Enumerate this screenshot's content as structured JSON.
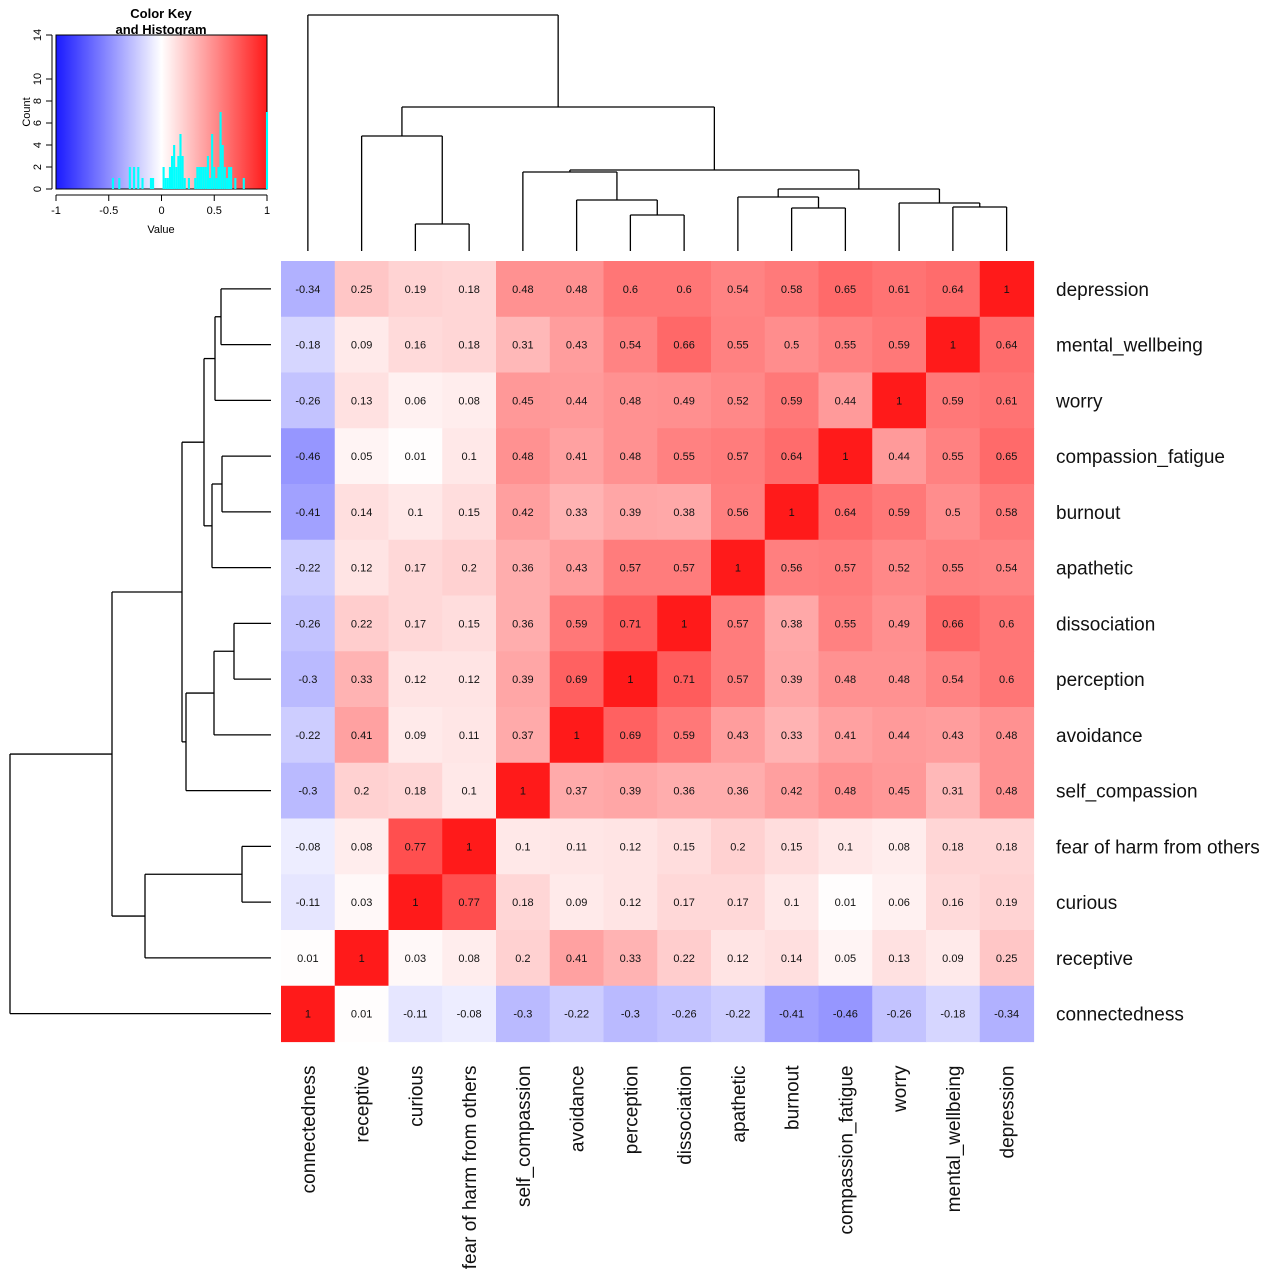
{
  "chart_data": {
    "type": "heatmap",
    "color_key": {
      "title_line1": "Color Key",
      "title_line2": "and Histogram",
      "xlabel": "Value",
      "ylabel": "Count",
      "x_ticks": [
        "-1",
        "-0.5",
        "0",
        "0.5",
        "1"
      ],
      "y_ticks": [
        "0",
        "2",
        "4",
        "6",
        "8",
        "10",
        "14"
      ],
      "xlim": [
        -1,
        1
      ],
      "ylim": [
        0,
        14
      ],
      "low_color": "#1a1aff",
      "mid_color": "#ffffff",
      "high_color": "#ff1a1a",
      "histogram_color": "#00ffff"
    },
    "columns": [
      "connectedness",
      "receptive",
      "curious",
      "fear of harm from others",
      "self_compassion",
      "avoidance",
      "perception",
      "dissociation",
      "apathetic",
      "burnout",
      "compassion_fatigue",
      "worry",
      "mental_wellbeing",
      "depression"
    ],
    "rows": [
      "depression",
      "mental_wellbeing",
      "worry",
      "compassion_fatigue",
      "burnout",
      "apathetic",
      "dissociation",
      "perception",
      "avoidance",
      "self_compassion",
      "fear of harm from others",
      "curious",
      "receptive",
      "connectedness"
    ],
    "values": [
      [
        -0.34,
        0.25,
        0.19,
        0.18,
        0.48,
        0.48,
        0.6,
        0.6,
        0.54,
        0.58,
        0.65,
        0.61,
        0.64,
        1
      ],
      [
        -0.18,
        0.09,
        0.16,
        0.18,
        0.31,
        0.43,
        0.54,
        0.66,
        0.55,
        0.5,
        0.55,
        0.59,
        1,
        0.64
      ],
      [
        -0.26,
        0.13,
        0.06,
        0.08,
        0.45,
        0.44,
        0.48,
        0.49,
        0.52,
        0.59,
        0.44,
        1,
        0.59,
        0.61
      ],
      [
        -0.46,
        0.05,
        0.01,
        0.1,
        0.48,
        0.41,
        0.48,
        0.55,
        0.57,
        0.64,
        1,
        0.44,
        0.55,
        0.65
      ],
      [
        -0.41,
        0.14,
        0.1,
        0.15,
        0.42,
        0.33,
        0.39,
        0.38,
        0.56,
        1,
        0.64,
        0.59,
        0.5,
        0.58
      ],
      [
        -0.22,
        0.12,
        0.17,
        0.2,
        0.36,
        0.43,
        0.57,
        0.57,
        1,
        0.56,
        0.57,
        0.52,
        0.55,
        0.54
      ],
      [
        -0.26,
        0.22,
        0.17,
        0.15,
        0.36,
        0.59,
        0.71,
        1,
        0.57,
        0.38,
        0.55,
        0.49,
        0.66,
        0.6
      ],
      [
        -0.3,
        0.33,
        0.12,
        0.12,
        0.39,
        0.69,
        1,
        0.71,
        0.57,
        0.39,
        0.48,
        0.48,
        0.54,
        0.6
      ],
      [
        -0.22,
        0.41,
        0.09,
        0.11,
        0.37,
        1,
        0.69,
        0.59,
        0.43,
        0.33,
        0.41,
        0.44,
        0.43,
        0.48
      ],
      [
        -0.3,
        0.2,
        0.18,
        0.1,
        1,
        0.37,
        0.39,
        0.36,
        0.36,
        0.42,
        0.48,
        0.45,
        0.31,
        0.48
      ],
      [
        -0.08,
        0.08,
        0.77,
        1,
        0.1,
        0.11,
        0.12,
        0.15,
        0.2,
        0.15,
        0.1,
        0.08,
        0.18,
        0.18
      ],
      [
        -0.11,
        0.03,
        1,
        0.77,
        0.18,
        0.09,
        0.12,
        0.17,
        0.17,
        0.1,
        0.01,
        0.06,
        0.16,
        0.19
      ],
      [
        0.01,
        1,
        0.03,
        0.08,
        0.2,
        0.41,
        0.33,
        0.22,
        0.12,
        0.14,
        0.05,
        0.13,
        0.09,
        0.25
      ],
      [
        1,
        0.01,
        -0.11,
        -0.08,
        -0.3,
        -0.22,
        -0.3,
        -0.26,
        -0.22,
        -0.41,
        -0.46,
        -0.26,
        -0.18,
        -0.34
      ]
    ],
    "cell_labels": [
      [
        "-0.34",
        "0.25",
        "0.19",
        "0.18",
        "0.48",
        "0.48",
        "0.6",
        "0.6",
        "0.54",
        "0.58",
        "0.65",
        "0.61",
        "0.64",
        "1"
      ],
      [
        "-0.18",
        "0.09",
        "0.16",
        "0.18",
        "0.31",
        "0.43",
        "0.54",
        "0.66",
        "0.55",
        "0.5",
        "0.55",
        "0.59",
        "1",
        "0.64"
      ],
      [
        "-0.26",
        "0.13",
        "0.06",
        "0.08",
        "0.45",
        "0.44",
        "0.48",
        "0.49",
        "0.52",
        "0.59",
        "0.44",
        "1",
        "0.59",
        "0.61"
      ],
      [
        "-0.46",
        "0.05",
        "0.01",
        "0.1",
        "0.48",
        "0.41",
        "0.48",
        "0.55",
        "0.57",
        "0.64",
        "1",
        "0.44",
        "0.55",
        "0.65"
      ],
      [
        "-0.41",
        "0.14",
        "0.1",
        "0.15",
        "0.42",
        "0.33",
        "0.39",
        "0.38",
        "0.56",
        "1",
        "0.64",
        "0.59",
        "0.5",
        "0.58"
      ],
      [
        "-0.22",
        "0.12",
        "0.17",
        "0.2",
        "0.36",
        "0.43",
        "0.57",
        "0.57",
        "1",
        "0.56",
        "0.57",
        "0.52",
        "0.55",
        "0.54"
      ],
      [
        "-0.26",
        "0.22",
        "0.17",
        "0.15",
        "0.36",
        "0.59",
        "0.71",
        "1",
        "0.57",
        "0.38",
        "0.55",
        "0.49",
        "0.66",
        "0.6"
      ],
      [
        "-0.3",
        "0.33",
        "0.12",
        "0.12",
        "0.39",
        "0.69",
        "1",
        "0.71",
        "0.57",
        "0.39",
        "0.48",
        "0.48",
        "0.54",
        "0.6"
      ],
      [
        "-0.22",
        "0.41",
        "0.09",
        "0.11",
        "0.37",
        "1",
        "0.69",
        "0.59",
        "0.43",
        "0.33",
        "0.41",
        "0.44",
        "0.43",
        "0.48"
      ],
      [
        "-0.3",
        "0.2",
        "0.18",
        "0.1",
        "1",
        "0.37",
        "0.39",
        "0.36",
        "0.36",
        "0.42",
        "0.48",
        "0.45",
        "0.31",
        "0.48"
      ],
      [
        "-0.08",
        "0.08",
        "0.77",
        "1",
        "0.1",
        "0.11",
        "0.12",
        "0.15",
        "0.2",
        "0.15",
        "0.1",
        "0.08",
        "0.18",
        "0.18"
      ],
      [
        "-0.11",
        "0.03",
        "1",
        "0.77",
        "0.18",
        "0.09",
        "0.12",
        "0.17",
        "0.17",
        "0.1",
        "0.01",
        "0.06",
        "0.16",
        "0.19"
      ],
      [
        "0.01",
        "1",
        "0.03",
        "0.08",
        "0.2",
        "0.41",
        "0.33",
        "0.22",
        "0.12",
        "0.14",
        "0.05",
        "0.13",
        "0.09",
        "0.25"
      ],
      [
        "1",
        "0.01",
        "-0.11",
        "-0.08",
        "-0.3",
        "-0.22",
        "-0.3",
        "-0.26",
        "-0.22",
        "-0.41",
        "-0.46",
        "-0.26",
        "-0.18",
        "-0.34"
      ]
    ],
    "dendrogram": "row and column hierarchical clustering trees",
    "grid": false,
    "legend_placement": "top-left"
  }
}
